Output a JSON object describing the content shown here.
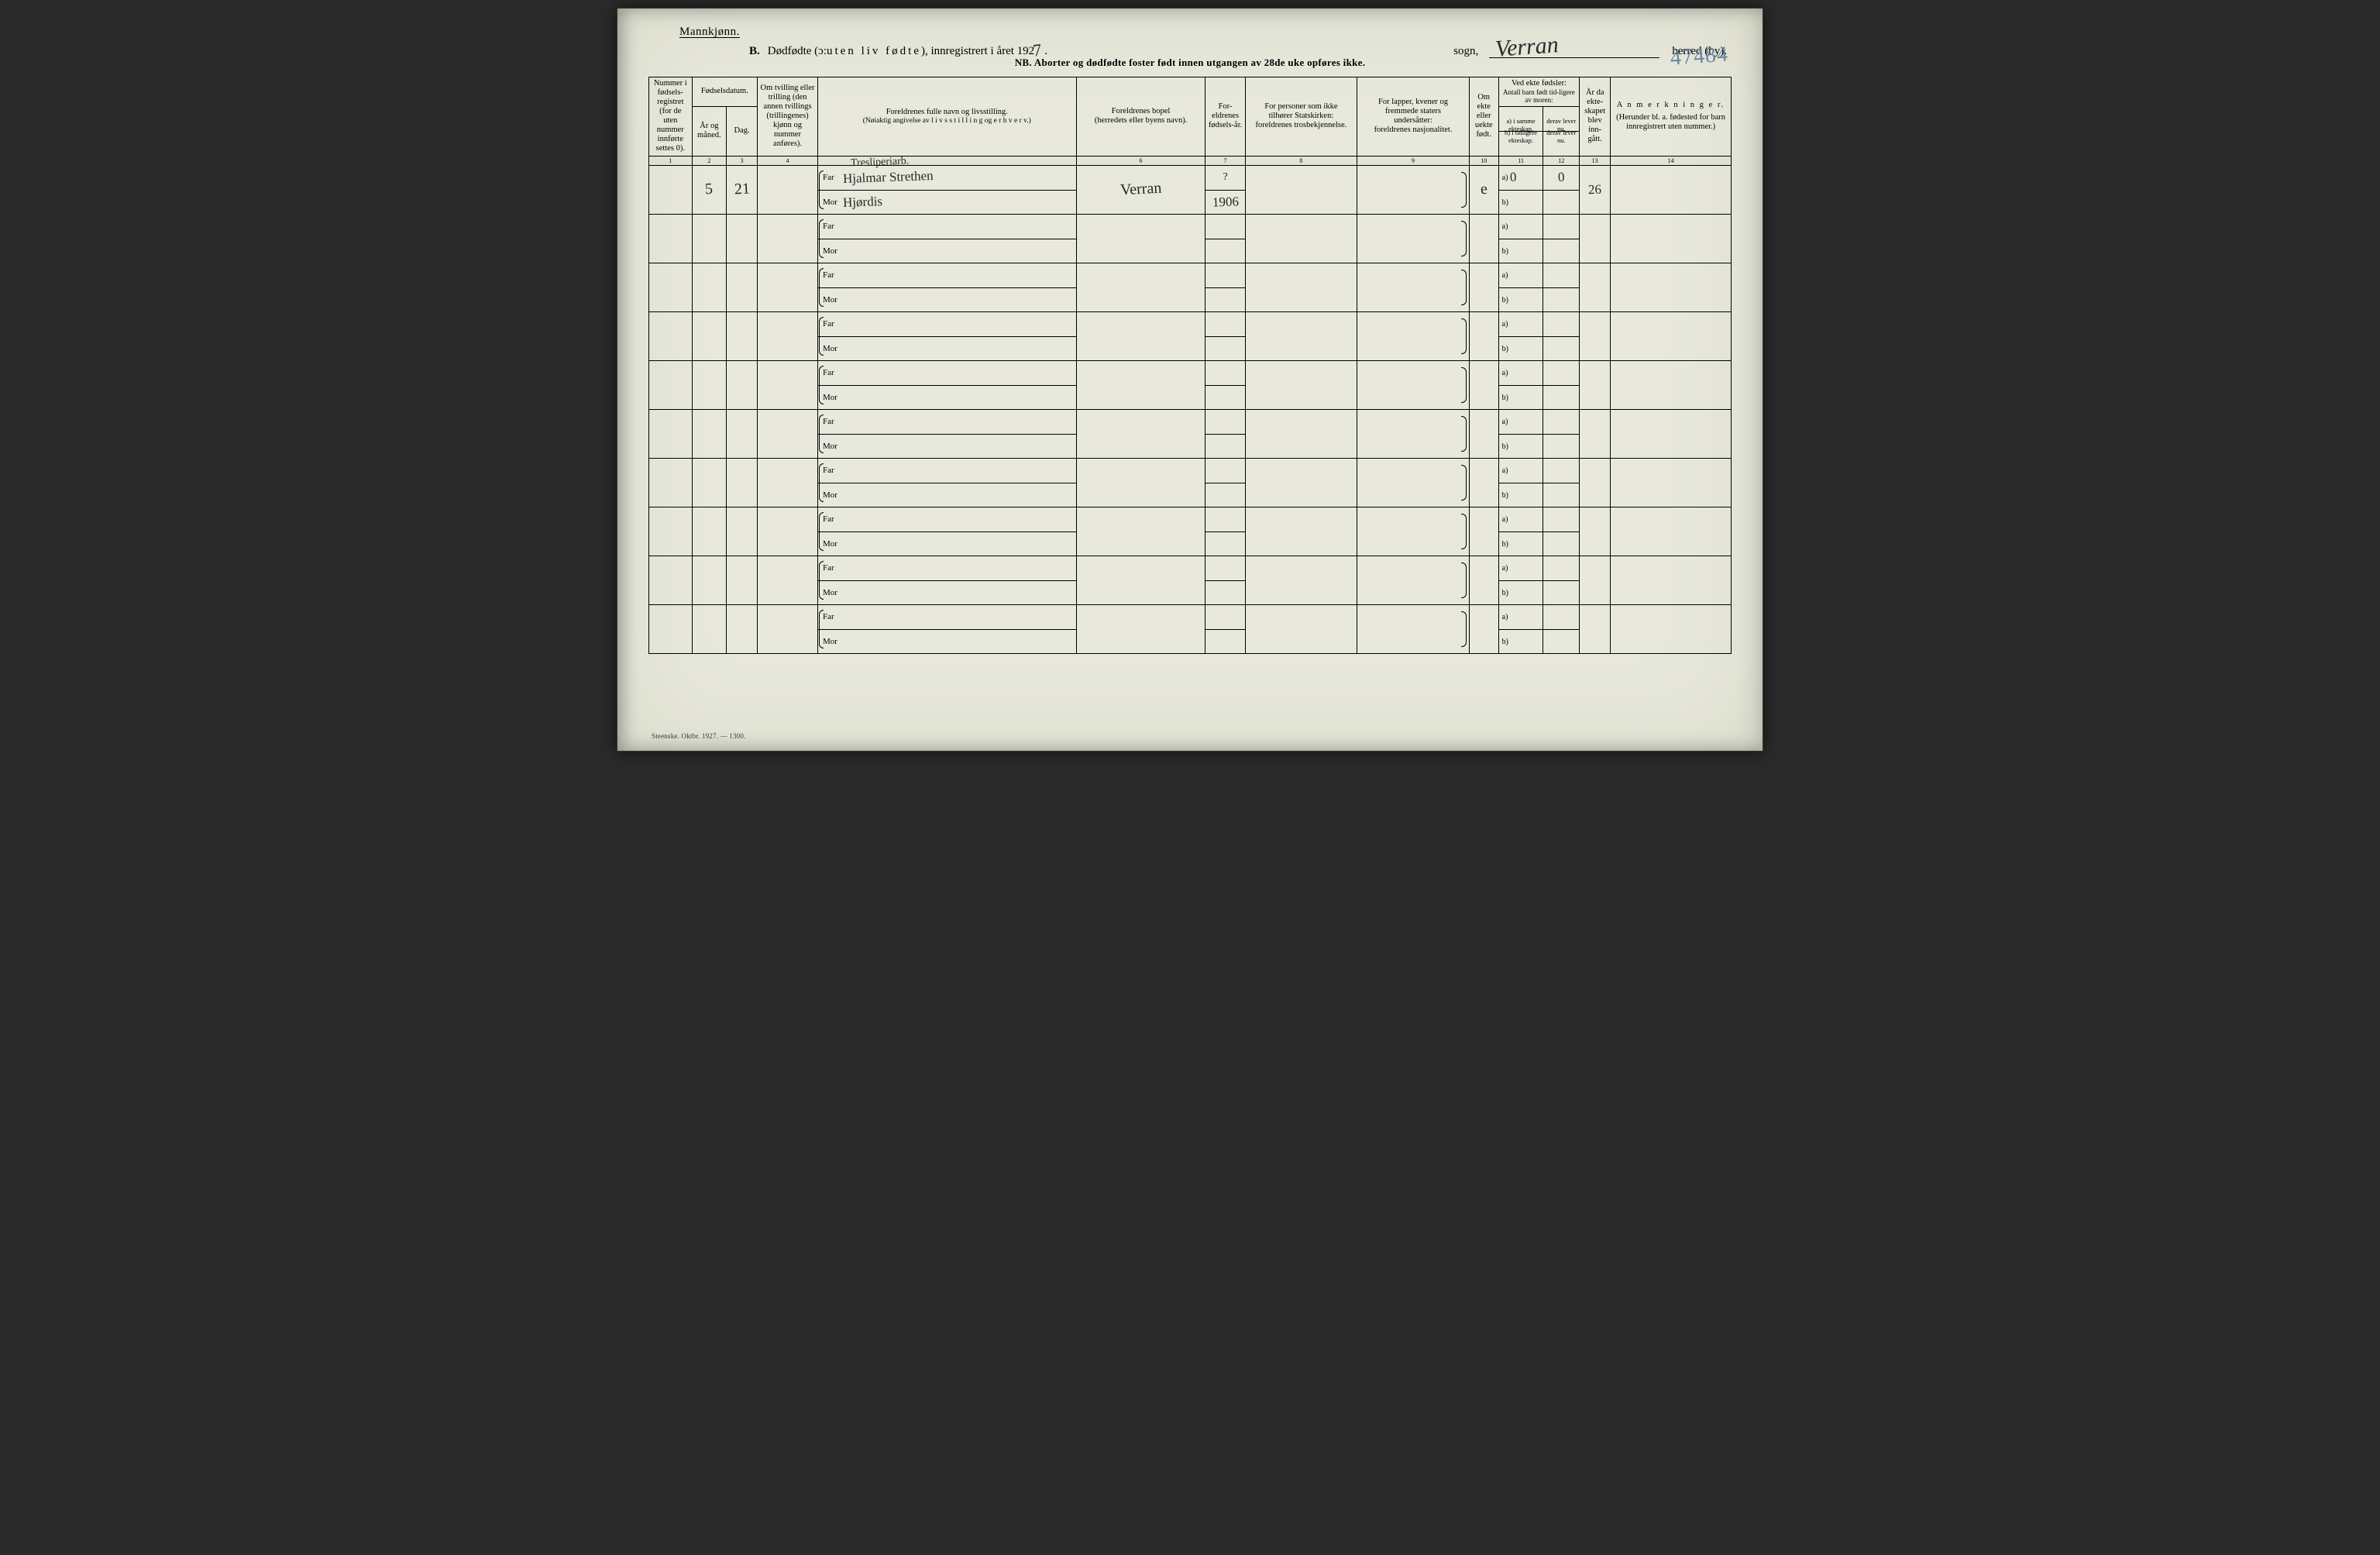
{
  "colors": {
    "paper": "#e8e9dc",
    "ink": "#000000",
    "handwriting": "#272727",
    "pencil_blue": "#6a87a0"
  },
  "header": {
    "gender": "Mannkjønn.",
    "section_letter": "B.",
    "title_pre": "Dødfødte (ɔ: ",
    "title_spaced": "uten liv fødte",
    "title_post": "), innregistrert i året 192",
    "year_suffix_hw": "7",
    "sogn_label": "sogn,",
    "sogn_value_hw": "Verran",
    "herred_label": "herred (by).",
    "corner_number_hw": "47484",
    "nb_line": "NB.  Aborter og dødfødte foster født innen utgangen av 28de uke opføres ikke."
  },
  "columns": {
    "c1": "Nummer i fødsels-registret (for de uten nummer innførte settes 0).",
    "c2_group": "Fødselsdatum.",
    "c2": "År og måned.",
    "c3": "Dag.",
    "c4": "Om tvilling eller trilling (den annen tvillings (trillingenes) kjønn og nummer anføres).",
    "c5_line1": "Foreldrenes fulle navn og livsstilling.",
    "c5_line2": "(Nøiaktig angivelse av  l i v s s t i l l i n g  og  e r h v e r v.)",
    "c6_line1": "Foreldrenes bopel",
    "c6_line2": "(herredets eller byens navn).",
    "c7": "For-eldrenes fødsels-år.",
    "c8_line1": "For personer som ikke",
    "c8_line2": "tilhører Statskirken:",
    "c8_line3": "foreldrenes trosbekjennelse.",
    "c9_line1": "For lapper, kvener og",
    "c9_line2": "fremmede staters",
    "c9_line3": "undersåtter:",
    "c9_line4": "foreldrenes nasjonalitet.",
    "c10": "Om ekte eller uekte født.",
    "c11_top": "Ved ekte fødsler:",
    "c11_mid": "Antall barn født tid-ligere av moren:",
    "c11_a": "a) i samme ekteskap.",
    "c11_b": "b) i tidligere ekteskap.",
    "c12_a": "derav lever nu.",
    "c12_b": "derav lever nu.",
    "c13": "År da ekte-skapet blev inn-gått.",
    "c14_line1": "A n m e r k n i n g e r.",
    "c14_line2": "(Herunder bl. a. fødested for barn innregistrert uten nummer.)"
  },
  "column_numbers": [
    "1",
    "2",
    "3",
    "4",
    "",
    "6",
    "7",
    "8",
    "9",
    "10",
    "11",
    "12",
    "13",
    "14"
  ],
  "row_labels": {
    "far": "Far",
    "mor": "Mor",
    "a": "a)",
    "b": "b)"
  },
  "rows": [
    {
      "num": "",
      "month": "5",
      "day": "21",
      "twin": "",
      "occupation_hw": "Tresliperiarb.",
      "far_hw": "Hjalmar Strethen",
      "mor_hw": "Hjørdis",
      "bopel_hw": "Verran",
      "far_year_hw": "?",
      "mor_year_hw": "1906",
      "col8": "",
      "col9": "",
      "ekte_hw": "e",
      "a_val_hw": "0",
      "a_lever_hw": "0",
      "b_val_hw": "",
      "b_lever_hw": "",
      "year_innga_hw": "26",
      "anm": ""
    },
    {},
    {},
    {},
    {},
    {},
    {},
    {},
    {},
    {}
  ],
  "footer": "Steenske. Oktbr. 1927. — 1300."
}
